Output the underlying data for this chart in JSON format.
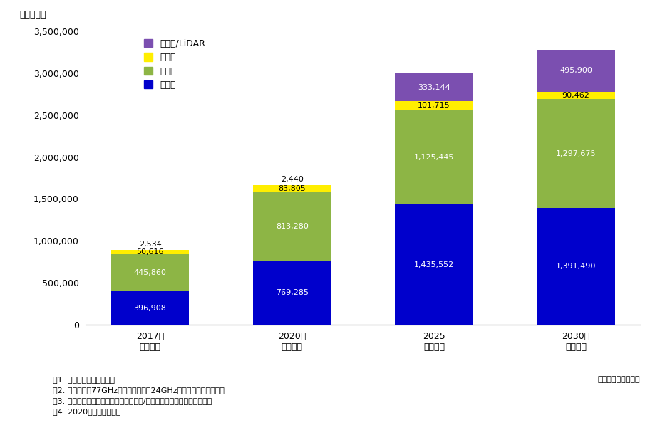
{
  "categories": [
    "2017年\n（実績）",
    "2020年\n（予測）",
    "2025\n（予測）",
    "2030年\n（予測）"
  ],
  "radar": [
    396908,
    769285,
    1435552,
    1391490
  ],
  "camera": [
    445860,
    813280,
    1125445,
    1297675
  ],
  "ultrasound": [
    50616,
    83805,
    101715,
    90462
  ],
  "lidar": [
    2534,
    2440,
    333144,
    495900
  ],
  "colors": {
    "radar": "#0000CC",
    "camera": "#8DB545",
    "ultrasound": "#FFEE00",
    "lidar": "#7B4FB0"
  },
  "legend_labels": [
    "レーザ/LiDAR",
    "超音波",
    "カメラ",
    "レーダ"
  ],
  "ylabel": "（百万円）",
  "ylim": [
    0,
    3500000
  ],
  "yticks": [
    0,
    500000,
    1000000,
    1500000,
    2000000,
    2500000,
    3000000,
    3500000
  ],
  "notes_line1": "注1. メーカ出荷金額ベース",
  "notes_line2": "注2. レーダには77GHzミリ波レーダ、24GHz準ミリ波レーダを含む",
  "notes_line3": "注3. カメラにはセンシングカメラ、リア/サラウンドビューカメラを含む",
  "notes_line4": "注4. 2020年以降は予測値",
  "source": "矢野経済研究所調べ",
  "bar_width": 0.55,
  "background_color": "#FFFFFF",
  "font_size_tick": 9,
  "font_size_note": 8,
  "font_size_legend": 9,
  "font_size_value": 8
}
